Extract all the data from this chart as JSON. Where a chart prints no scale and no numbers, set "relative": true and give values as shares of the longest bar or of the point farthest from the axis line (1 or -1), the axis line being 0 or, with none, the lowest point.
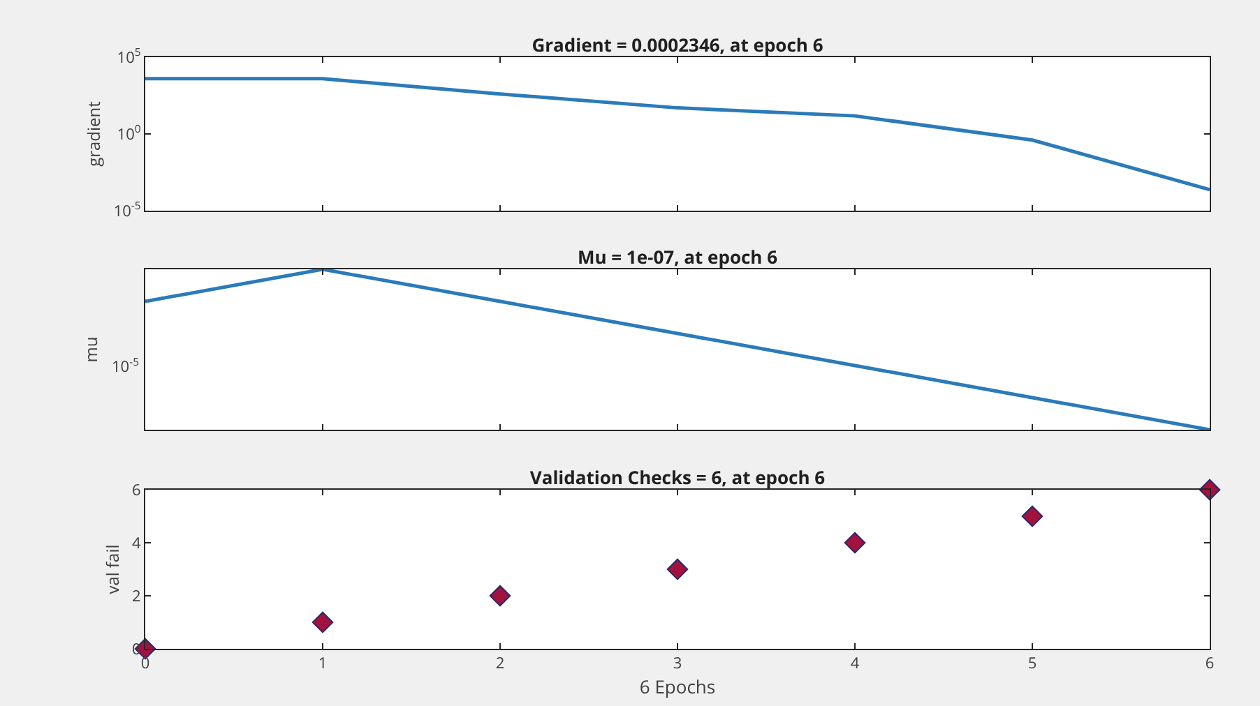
{
  "chart_data": [
    {
      "type": "line",
      "title": "Gradient = 0.0002346, at epoch 6",
      "ylabel": "gradient",
      "log": "y",
      "x": [
        0,
        1,
        2,
        3,
        4,
        5,
        6
      ],
      "series": [
        {
          "color": "#2b7bba",
          "values": [
            4000,
            4000,
            400,
            50,
            15,
            0.4,
            0.0002346
          ]
        }
      ],
      "xlim": [
        0,
        6
      ],
      "xticks": [
        {
          "value": 0,
          "label": null
        },
        {
          "value": 1,
          "label": null
        },
        {
          "value": 2,
          "label": null
        },
        {
          "value": 3,
          "label": null
        },
        {
          "value": 4,
          "label": null
        },
        {
          "value": 5,
          "label": null
        },
        {
          "value": 6,
          "label": null
        }
      ],
      "ylim": [
        1e-05,
        100000
      ],
      "yticks": [
        {
          "value": 1e-05,
          "label": "10$^{-5}$"
        },
        {
          "value": 1,
          "label": "10$^{0}$"
        },
        {
          "value": 100000,
          "label": "10$^{5}$"
        }
      ],
      "tick_labels": "y",
      "marker": "none",
      "line_style": "solid"
    },
    {
      "type": "line",
      "title": "Mu = 1e-07, at epoch 6",
      "ylabel": "mu",
      "relative": true,
      "x": [
        0,
        1,
        2,
        3,
        4,
        5,
        6
      ],
      "series": [
        {
          "color": "#2b7bba",
          "values": [
            0.8,
            1,
            0.8,
            0.6,
            0.4,
            0.2,
            0
          ]
        }
      ],
      "annotations": [
        "10$^{-5}$"
      ],
      "xlim": [
        0,
        6
      ],
      "xticks": [
        {
          "value": 0,
          "label": null
        },
        {
          "value": 1,
          "label": null
        },
        {
          "value": 2,
          "label": null
        },
        {
          "value": 3,
          "label": null
        },
        {
          "value": 4,
          "label": null
        },
        {
          "value": 5,
          "label": null
        },
        {
          "value": 6,
          "label": null
        }
      ],
      "tick_labels": "y",
      "marker": "none",
      "line_style": "solid"
    },
    {
      "type": "scatter",
      "title": "Validation Checks = 6, at epoch 6",
      "xlabel": "6 Epochs",
      "ylabel": "val fail",
      "x": [
        0,
        1,
        2,
        3,
        4,
        5,
        6
      ],
      "series": [
        {
          "color": "#a3123f",
          "values": [
            0,
            1,
            2,
            3,
            4,
            5,
            6
          ]
        }
      ],
      "xlim": [
        0,
        6
      ],
      "xticks": [
        0,
        1,
        2,
        3,
        4,
        5,
        6
      ],
      "ylim": [
        0,
        6
      ],
      "yticks": [
        0,
        2,
        4,
        6
      ],
      "marker": "diamond"
    }
  ]
}
